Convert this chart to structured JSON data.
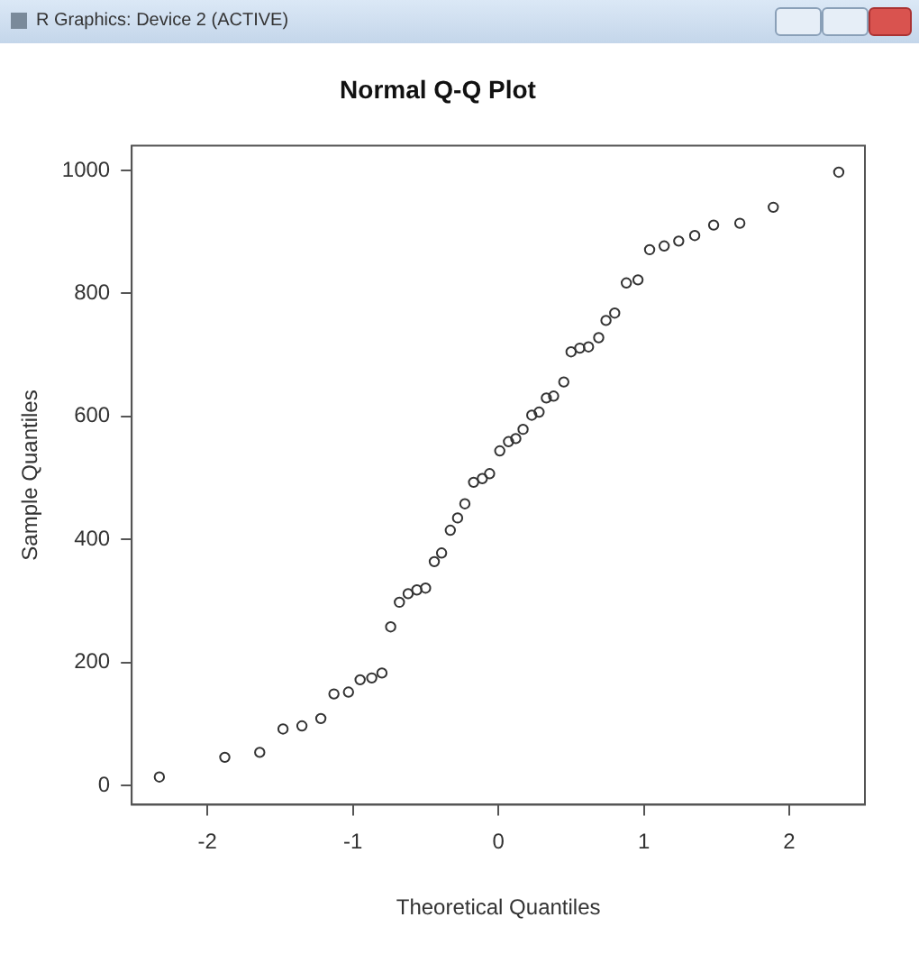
{
  "chart_data": {
    "type": "scatter",
    "title": "Normal Q-Q Plot",
    "xlabel": "Theoretical Quantiles",
    "ylabel": "Sample Quantiles",
    "annotations": [
      "R Graphics: Device 2 (ACTIVE)"
    ],
    "series": [
      {
        "color": "#333333",
        "x": [
          -2.33,
          -1.88,
          -1.64,
          -1.48,
          -1.35,
          -1.22,
          -1.13,
          -1.03,
          -0.95,
          -0.87,
          -0.8,
          -0.74,
          -0.68,
          -0.62,
          -0.56,
          -0.5,
          -0.44,
          -0.39,
          -0.33,
          -0.28,
          -0.23,
          -0.17,
          -0.11,
          -0.06,
          0.01,
          0.07,
          0.12,
          0.17,
          0.23,
          0.28,
          0.33,
          0.38,
          0.45,
          0.5,
          0.56,
          0.62,
          0.69,
          0.74,
          0.8,
          0.88,
          0.96,
          1.04,
          1.14,
          1.24,
          1.35,
          1.48,
          1.66,
          1.89,
          2.34
        ],
        "values": [
          14,
          46,
          54,
          92,
          97,
          109,
          149,
          152,
          172,
          175,
          183,
          258,
          298,
          312,
          318,
          321,
          364,
          378,
          415,
          435,
          458,
          493,
          499,
          507,
          544,
          559,
          564,
          579,
          602,
          607,
          630,
          633,
          656,
          705,
          711,
          713,
          728,
          756,
          768,
          817,
          822,
          871,
          877,
          885,
          894,
          911,
          914,
          940,
          997
        ]
      }
    ],
    "xlim": [
      -2.52,
      2.52
    ],
    "ylim": [
      -31,
      1040
    ],
    "xticks": [
      -2,
      -1,
      0,
      1,
      2
    ],
    "yticks": [
      0,
      200,
      400,
      600,
      800,
      1000
    ],
    "marker": "circle",
    "grid": false,
    "legend": false
  }
}
